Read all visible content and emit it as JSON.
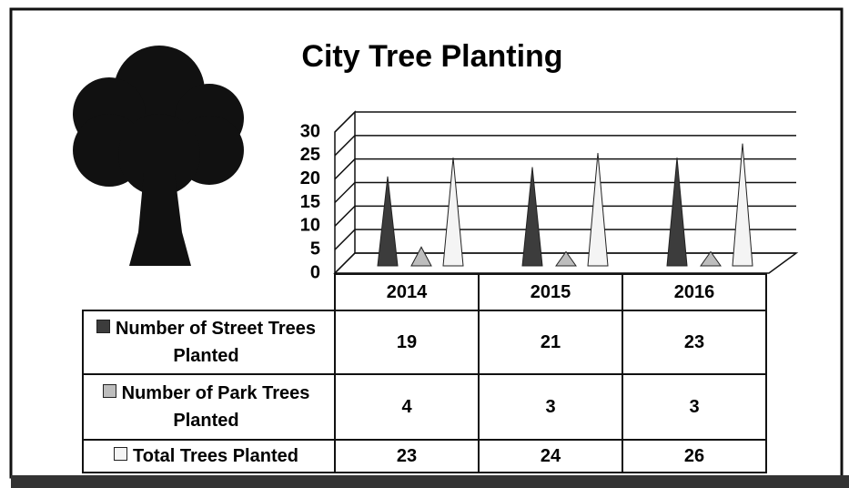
{
  "chart_data": {
    "type": "cone",
    "title": "City Tree Planting",
    "categories": [
      "2014",
      "2015",
      "2016"
    ],
    "series": [
      {
        "name": "Number of Street Trees Planted",
        "color": "#3c3c3c",
        "values": [
          19,
          21,
          23
        ]
      },
      {
        "name": "Number of Park Trees Planted",
        "color": "#bdbdbd",
        "values": [
          4,
          3,
          3
        ]
      },
      {
        "name": "Total Trees Planted",
        "color": "#f4f4f4",
        "values": [
          23,
          24,
          26
        ]
      }
    ],
    "ylim": [
      0,
      30
    ],
    "yticks": [
      0,
      5,
      10,
      15,
      20,
      25,
      30
    ],
    "grid": true
  }
}
